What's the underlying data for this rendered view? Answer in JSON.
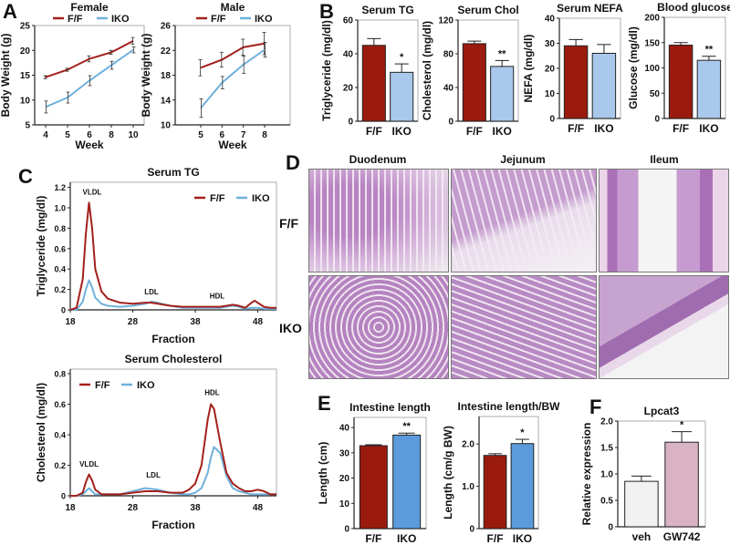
{
  "panels": [
    "A",
    "B",
    "C",
    "D",
    "E",
    "F"
  ],
  "histology": {
    "columns": [
      "Duodenum",
      "Jejunum",
      "Ileum"
    ],
    "rows": [
      "F/F",
      "IKO"
    ]
  },
  "colors": {
    "ff_line": "#a3201b",
    "iko_line": "#6fb0dc",
    "ff_bar": "#9b1a0e",
    "iko_bar_b": "#a9c8ec",
    "iko_bar_e": "#5b9bdc",
    "veh_bar": "#f2f2f2",
    "gw_bar": "#d9b2c3"
  },
  "chart_data": [
    {
      "type": "line",
      "title": "Female",
      "xlabel": "Week",
      "ylabel": "Body Weight (g)",
      "categories": [
        "4",
        "5",
        "6",
        "8",
        "10"
      ],
      "ylim": [
        5,
        25
      ],
      "yticks": [
        "5",
        "10",
        "15",
        "20",
        "25"
      ],
      "legend": [
        "F/F",
        "IKO"
      ],
      "series": [
        {
          "name": "F/F",
          "values": [
            14.6,
            16.1,
            18.3,
            19.6,
            21.9
          ],
          "errors": [
            0.3,
            0.3,
            0.6,
            0.4,
            0.7
          ]
        },
        {
          "name": "IKO",
          "values": [
            8.6,
            10.5,
            13.9,
            17.0,
            20.1
          ],
          "errors": [
            1.2,
            1.1,
            1.0,
            0.8,
            0.6
          ]
        }
      ]
    },
    {
      "type": "line",
      "title": "Male",
      "xlabel": "Week",
      "ylabel": "Body Weight (g)",
      "categories": [
        "5",
        "6",
        "7",
        "8"
      ],
      "ylim": [
        10,
        26
      ],
      "yticks": [
        "10",
        "14",
        "18",
        "22",
        "26"
      ],
      "legend": [
        "F/F",
        "IKO"
      ],
      "series": [
        {
          "name": "F/F",
          "values": [
            19.2,
            20.5,
            22.5,
            23.1
          ],
          "errors": [
            1.3,
            1.2,
            1.3,
            1.8
          ]
        },
        {
          "name": "IKO",
          "values": [
            12.7,
            16.8,
            19.7,
            22.1
          ],
          "errors": [
            1.5,
            1.0,
            1.4,
            1.2
          ]
        }
      ]
    },
    {
      "type": "bar",
      "title": "Serum TG",
      "ylabel": "Triglyceride (mg/dl)",
      "categories": [
        "F/F",
        "IKO"
      ],
      "values": [
        45,
        29
      ],
      "errors": [
        4,
        5
      ],
      "sig": [
        "",
        "*"
      ],
      "ylim": [
        0,
        60
      ],
      "yticks": [
        "0",
        "20",
        "40",
        "60"
      ]
    },
    {
      "type": "bar",
      "title": "Serum Chol",
      "ylabel": "Cholesterol (mg/dl)",
      "categories": [
        "F/F",
        "IKO"
      ],
      "values": [
        92,
        65
      ],
      "errors": [
        3,
        7
      ],
      "sig": [
        "",
        "**"
      ],
      "ylim": [
        0,
        120
      ],
      "yticks": [
        "0",
        "40",
        "80",
        "120"
      ]
    },
    {
      "type": "bar",
      "title": "Serum NEFA",
      "ylabel": "NEFA (mg/dl)",
      "categories": [
        "F/F",
        "IKO"
      ],
      "values": [
        29,
        26
      ],
      "errors": [
        2.5,
        3.5
      ],
      "sig": [
        "",
        ""
      ],
      "ylim": [
        0,
        40
      ],
      "yticks": [
        "0",
        "10",
        "20",
        "30",
        "40"
      ]
    },
    {
      "type": "bar",
      "title": "Blood glucose",
      "ylabel": "Glucose (mg/dl)",
      "categories": [
        "F/F",
        "IKO"
      ],
      "values": [
        145,
        115
      ],
      "errors": [
        5,
        8
      ],
      "sig": [
        "",
        "**"
      ],
      "ylim": [
        0,
        200
      ],
      "yticks": [
        "0",
        "50",
        "100",
        "150",
        "200"
      ]
    },
    {
      "type": "line",
      "title": "Serum TG",
      "xlabel": "Fraction",
      "ylabel": "Triglyceride (mg/dl)",
      "xlim": [
        18,
        51
      ],
      "xticks": [
        "18",
        "28",
        "38",
        "48"
      ],
      "ylim": [
        0,
        1.25
      ],
      "yticks": [
        "0",
        "0.2",
        "0.4",
        "0.6",
        "0.8",
        "1.0",
        "1.2"
      ],
      "legend": [
        "F/F",
        "IKO"
      ],
      "legend_position": "top-right",
      "annotations": [
        {
          "text": "VLDL",
          "x": 21.5,
          "y": 1.13
        },
        {
          "text": "LDL",
          "x": 31,
          "y": 0.15
        },
        {
          "text": "HDL",
          "x": 41.5,
          "y": 0.11
        }
      ],
      "x": [
        18,
        19,
        20,
        20.5,
        21,
        21.5,
        22,
        23,
        24,
        26,
        28,
        30,
        31,
        32,
        34,
        36,
        38,
        40,
        42,
        44,
        45,
        46,
        47,
        47.5,
        48,
        49,
        50,
        51
      ],
      "series": [
        {
          "name": "F/F",
          "values": [
            0,
            0.02,
            0.3,
            0.75,
            1.05,
            0.8,
            0.4,
            0.18,
            0.11,
            0.07,
            0.06,
            0.07,
            0.07,
            0.06,
            0.04,
            0.03,
            0.03,
            0.03,
            0.03,
            0.05,
            0.04,
            0.02,
            0.07,
            0.09,
            0.07,
            0.03,
            0.02,
            0.02
          ]
        },
        {
          "name": "IKO",
          "values": [
            0,
            0,
            0.08,
            0.2,
            0.29,
            0.22,
            0.12,
            0.06,
            0.04,
            0.03,
            0.04,
            0.06,
            0.08,
            0.07,
            0.04,
            0.02,
            0.02,
            0.02,
            0.02,
            0.04,
            0.03,
            0.01,
            0.02,
            0.02,
            0.02,
            0.01,
            0.01,
            0.01
          ]
        }
      ]
    },
    {
      "type": "line",
      "title": "Serum Cholesterol",
      "xlabel": "Fraction",
      "ylabel": "Cholesterol (mg/dl)",
      "xlim": [
        18,
        51
      ],
      "xticks": [
        "18",
        "28",
        "38",
        "48"
      ],
      "ylim": [
        0,
        0.83
      ],
      "yticks": [
        "0",
        "0.2",
        "0.4",
        "0.6",
        "0.8"
      ],
      "legend": [
        "F/F",
        "IKO"
      ],
      "legend_position": "top-left",
      "annotations": [
        {
          "text": "VLDL",
          "x": 21,
          "y": 0.19
        },
        {
          "text": "LDL",
          "x": 31.3,
          "y": 0.12
        },
        {
          "text": "HDL",
          "x": 40.7,
          "y": 0.66
        }
      ],
      "x": [
        18,
        19,
        20,
        20.5,
        21,
        21.5,
        22,
        23,
        24,
        26,
        28,
        30,
        32,
        34,
        36,
        37,
        38,
        39,
        40,
        40.5,
        41,
        42,
        43,
        44,
        45,
        46,
        47,
        48,
        49,
        50,
        51
      ],
      "series": [
        {
          "name": "F/F",
          "values": [
            0,
            0,
            0.02,
            0.09,
            0.14,
            0.1,
            0.04,
            0.01,
            0.01,
            0.01,
            0.02,
            0.03,
            0.03,
            0.02,
            0.02,
            0.04,
            0.08,
            0.2,
            0.5,
            0.6,
            0.57,
            0.35,
            0.15,
            0.08,
            0.05,
            0.03,
            0.03,
            0.04,
            0.03,
            0.01,
            0.01
          ]
        },
        {
          "name": "IKO",
          "values": [
            0,
            0,
            0.01,
            0.03,
            0.05,
            0.03,
            0.01,
            0.01,
            0.01,
            0.01,
            0.03,
            0.05,
            0.04,
            0.02,
            0.01,
            0.01,
            0.02,
            0.05,
            0.15,
            0.25,
            0.32,
            0.28,
            0.13,
            0.05,
            0.03,
            0.02,
            0.01,
            0.01,
            0.01,
            0.01,
            0.01
          ]
        }
      ]
    },
    {
      "type": "bar",
      "title": "Intestine length",
      "ylabel": "Length (cm)",
      "categories": [
        "F/F",
        "IKO"
      ],
      "values": [
        32.8,
        37
      ],
      "errors": [
        0.4,
        0.8
      ],
      "sig": [
        "",
        "**"
      ],
      "ylim": [
        0,
        44
      ],
      "yticks": [
        "0",
        "10",
        "20",
        "30",
        "40"
      ]
    },
    {
      "type": "bar",
      "title": "Intestine length/BW",
      "ylabel": "Length (cm/g BW)",
      "categories": [
        "F/F",
        "IKO"
      ],
      "values": [
        1.73,
        2.01
      ],
      "errors": [
        0.04,
        0.1
      ],
      "sig": [
        "",
        "*"
      ],
      "ylim": [
        0,
        2.65
      ],
      "yticks": [
        "0",
        "1.0",
        "2.0"
      ]
    },
    {
      "type": "bar",
      "title": "Lpcat3",
      "ylabel": "Relative expression",
      "categories": [
        "veh",
        "GW742"
      ],
      "values": [
        0.86,
        1.6
      ],
      "errors": [
        0.1,
        0.2
      ],
      "sig": [
        "",
        "*"
      ],
      "ylim": [
        0,
        2.0
      ],
      "yticks": [
        "0",
        "0.5",
        "1.0",
        "1.5",
        "2.0"
      ]
    }
  ]
}
